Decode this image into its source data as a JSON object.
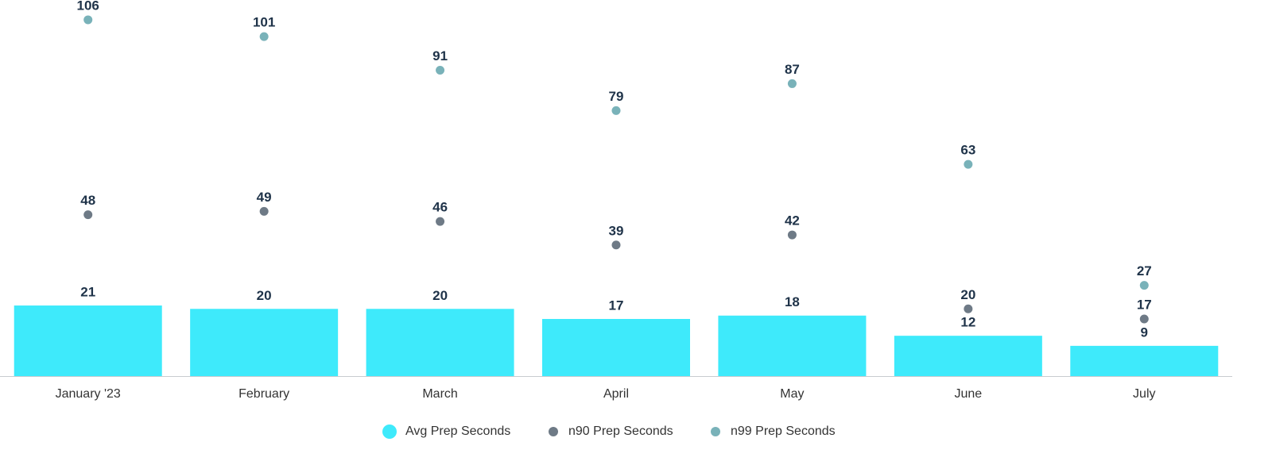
{
  "chart_data": {
    "type": "bar",
    "categories": [
      "January '23",
      "February",
      "March",
      "April",
      "May",
      "June",
      "July"
    ],
    "series": [
      {
        "name": "Avg Prep Seconds",
        "color": "#3eeafb",
        "type": "bar",
        "values": [
          21,
          20,
          20,
          17,
          18,
          12,
          9
        ]
      },
      {
        "name": "n90 Prep Seconds",
        "color": "#6e7a86",
        "type": "scatter",
        "values": [
          48,
          49,
          46,
          39,
          42,
          20,
          17
        ]
      },
      {
        "name": "n99 Prep Seconds",
        "color": "#79b2b9",
        "type": "scatter",
        "values": [
          106,
          101,
          91,
          79,
          87,
          63,
          27
        ]
      }
    ],
    "ylim": [
      0,
      110
    ],
    "grid": false,
    "legend": "bottom"
  }
}
